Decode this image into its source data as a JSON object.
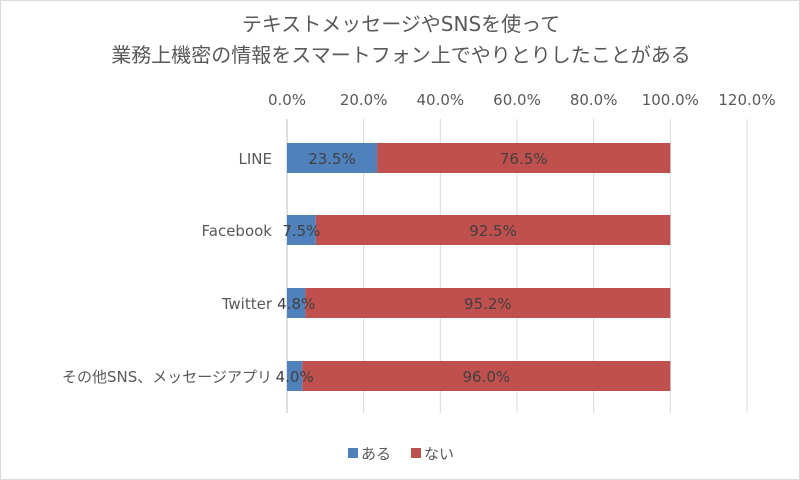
{
  "chart_data": {
    "type": "bar",
    "orientation": "horizontal",
    "stacked": true,
    "title_lines": [
      "テキストメッセージやSNSを使って",
      "業務上機密の情報をスマートフォン上でやりとりしたことがある"
    ],
    "x_ticks": [
      "0.0%",
      "20.0%",
      "40.0%",
      "60.0%",
      "80.0%",
      "100.0%",
      "120.0%"
    ],
    "xlim": [
      0,
      120
    ],
    "x_axis_position": "top",
    "grid": true,
    "categories": [
      "LINE",
      "Facebook",
      "Twitter",
      "その他SNS、メッセージアプリ"
    ],
    "series": [
      {
        "name": "ある",
        "color": "#4f81bd",
        "values": [
          23.5,
          7.5,
          4.8,
          4.0
        ],
        "labels": [
          "23.5%",
          "7.5%",
          "4.8%",
          "4.0%"
        ]
      },
      {
        "name": "ない",
        "color": "#c0504d",
        "values": [
          76.5,
          92.5,
          95.2,
          96.0
        ],
        "labels": [
          "76.5%",
          "92.5%",
          "95.2%",
          "96.0%"
        ]
      }
    ],
    "legend_position": "bottom"
  }
}
